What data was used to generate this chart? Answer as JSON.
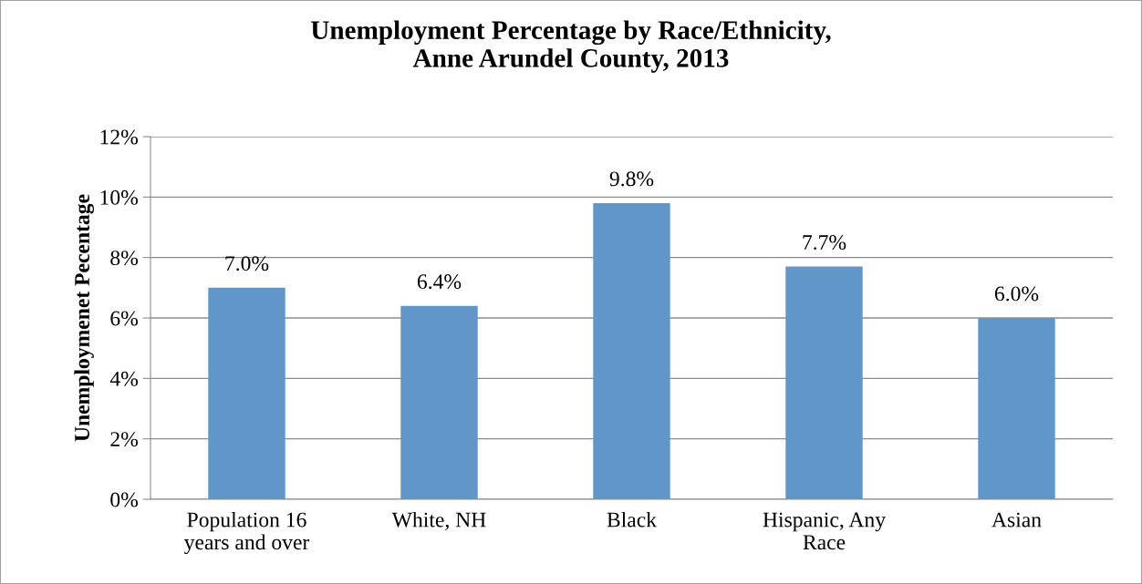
{
  "chart_data": {
    "type": "bar",
    "title": "Unemployment Percentage by Race/Ethnicity,\nAnne Arundel County, 2013",
    "ylabel": "Unemploymenet Pecentage",
    "categories": [
      "Population 16\nyears and over",
      "White, NH",
      "Black",
      "Hispanic, Any\nRace",
      "Asian"
    ],
    "values": [
      7.0,
      6.4,
      9.8,
      7.7,
      6.0
    ],
    "value_labels": [
      "7.0%",
      "6.4%",
      "9.8%",
      "7.7%",
      "6.0%"
    ],
    "color": "#6096c8",
    "ylim": [
      0,
      12
    ],
    "yticks": [
      {
        "value": 0,
        "label": "0%"
      },
      {
        "value": 2,
        "label": "2%"
      },
      {
        "value": 4,
        "label": "4%"
      },
      {
        "value": 6,
        "label": "6%"
      },
      {
        "value": 8,
        "label": "8%"
      },
      {
        "value": 10,
        "label": "10%"
      },
      {
        "value": 12,
        "label": "12%"
      }
    ],
    "grid": "y"
  }
}
